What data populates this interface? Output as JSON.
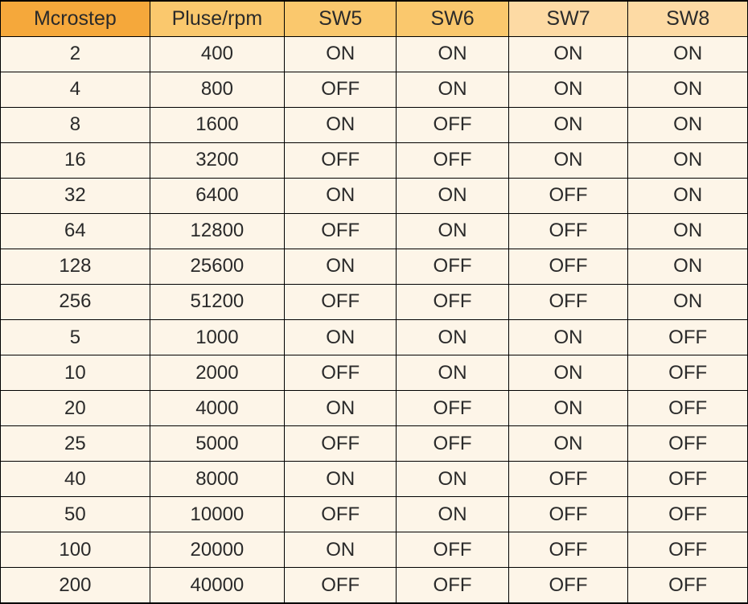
{
  "table": {
    "type": "table",
    "header_colors": [
      "#f5a83b",
      "#fac86d",
      "#fac86d",
      "#fac86d",
      "#fddaa4",
      "#fddaa4"
    ],
    "row_background": "#fdf5e8",
    "border_color": "#000000",
    "text_color": "#2a2a2a",
    "header_fontsize": 25,
    "cell_fontsize": 24,
    "columns": [
      "Mcrostep",
      "Pluse/rpm",
      "SW5",
      "SW6",
      "SW7",
      "SW8"
    ],
    "column_widths_pct": [
      20,
      18,
      15,
      15,
      16,
      16
    ],
    "rows": [
      [
        "2",
        "400",
        "ON",
        "ON",
        "ON",
        "ON"
      ],
      [
        "4",
        "800",
        "OFF",
        "ON",
        "ON",
        "ON"
      ],
      [
        "8",
        "1600",
        "ON",
        "OFF",
        "ON",
        "ON"
      ],
      [
        "16",
        "3200",
        "OFF",
        "OFF",
        "ON",
        "ON"
      ],
      [
        "32",
        "6400",
        "ON",
        "ON",
        "OFF",
        "ON"
      ],
      [
        "64",
        "12800",
        "OFF",
        "ON",
        "OFF",
        "ON"
      ],
      [
        "128",
        "25600",
        "ON",
        "OFF",
        "OFF",
        "ON"
      ],
      [
        "256",
        "51200",
        "OFF",
        "OFF",
        "OFF",
        "ON"
      ],
      [
        "5",
        "1000",
        "ON",
        "ON",
        "ON",
        "OFF"
      ],
      [
        "10",
        "2000",
        "OFF",
        "ON",
        "ON",
        "OFF"
      ],
      [
        "20",
        "4000",
        "ON",
        "OFF",
        "ON",
        "OFF"
      ],
      [
        "25",
        "5000",
        "OFF",
        "OFF",
        "ON",
        "OFF"
      ],
      [
        "40",
        "8000",
        "ON",
        "ON",
        "OFF",
        "OFF"
      ],
      [
        "50",
        "10000",
        "OFF",
        "ON",
        "OFF",
        "OFF"
      ],
      [
        "100",
        "20000",
        "ON",
        "OFF",
        "OFF",
        "OFF"
      ],
      [
        "200",
        "40000",
        "OFF",
        "OFF",
        "OFF",
        "OFF"
      ]
    ]
  }
}
